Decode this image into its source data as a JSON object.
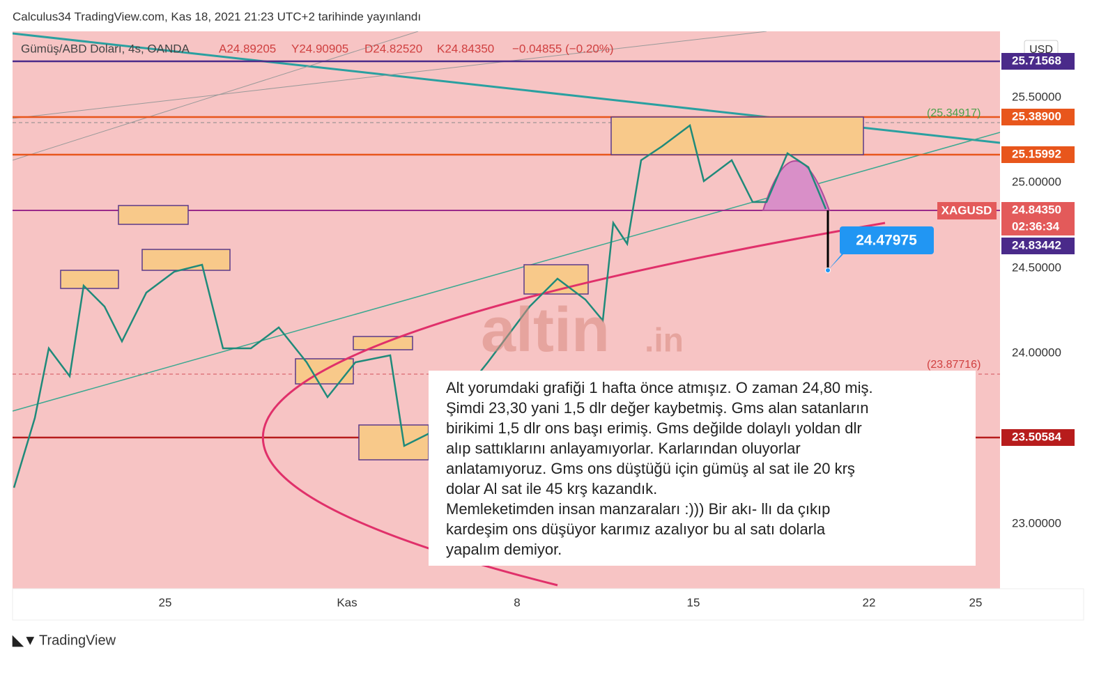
{
  "header": {
    "title": "Calculus34 TradingView.com, Kas 18, 2021 21:23 UTC+2 tarihinde yayınlandı"
  },
  "legend": {
    "symbol": "Gümüş/ABD Doları, 4s, OANDA",
    "open": "A24.89205",
    "high": "Y24.90905",
    "low": "D24.82520",
    "close": "K24.84350",
    "change": "−0.04855 (−0.20%)"
  },
  "currency": "USD",
  "price_labels": [
    "25.71568",
    "25.38900",
    "25.15992",
    "24.84350",
    "02:36:34",
    "24.83442",
    "23.50584"
  ],
  "price_axis": [
    "25.50000",
    "25.00000",
    "24.50000",
    "24.00000",
    "23.00000"
  ],
  "time_axis": [
    "25",
    "Kas",
    "8",
    "15",
    "22",
    "25"
  ],
  "annotations": {
    "symbol_tag": "XAGUSD",
    "callout": "24.47975",
    "level_high": "(25.34917)",
    "level_low": "(23.87716)"
  },
  "watermark": {
    "name": "altin",
    "suffix": ".in"
  },
  "comment": [
    "Alt yorumdaki grafiği 1 hafta önce atmışız. O zaman 24,80 miş.",
    "Şimdi 23,30 yani 1,5 dlr değer kaybetmiş. Gms alan satanların",
    "birikimi 1,5 dlr ons başı erimiş. Gms değilde dolaylı yoldan dlr",
    "alıp sattıklarını anlayamıyorlar. Karlarından oluyorlar",
    "anlatamıyoruz. Gms ons düştüğü için gümüş al sat ile 20 krş",
    "dolar Al sat ile 45 krş kazandık.",
    "Memleketimden insan manzaraları :))) Bir akı- llı da çıkıp",
    "kardeşim ons düşüyor karımız azalıyor bu al satı dolarla",
    "yapalım demiyor."
  ],
  "footer": "TradingView"
}
